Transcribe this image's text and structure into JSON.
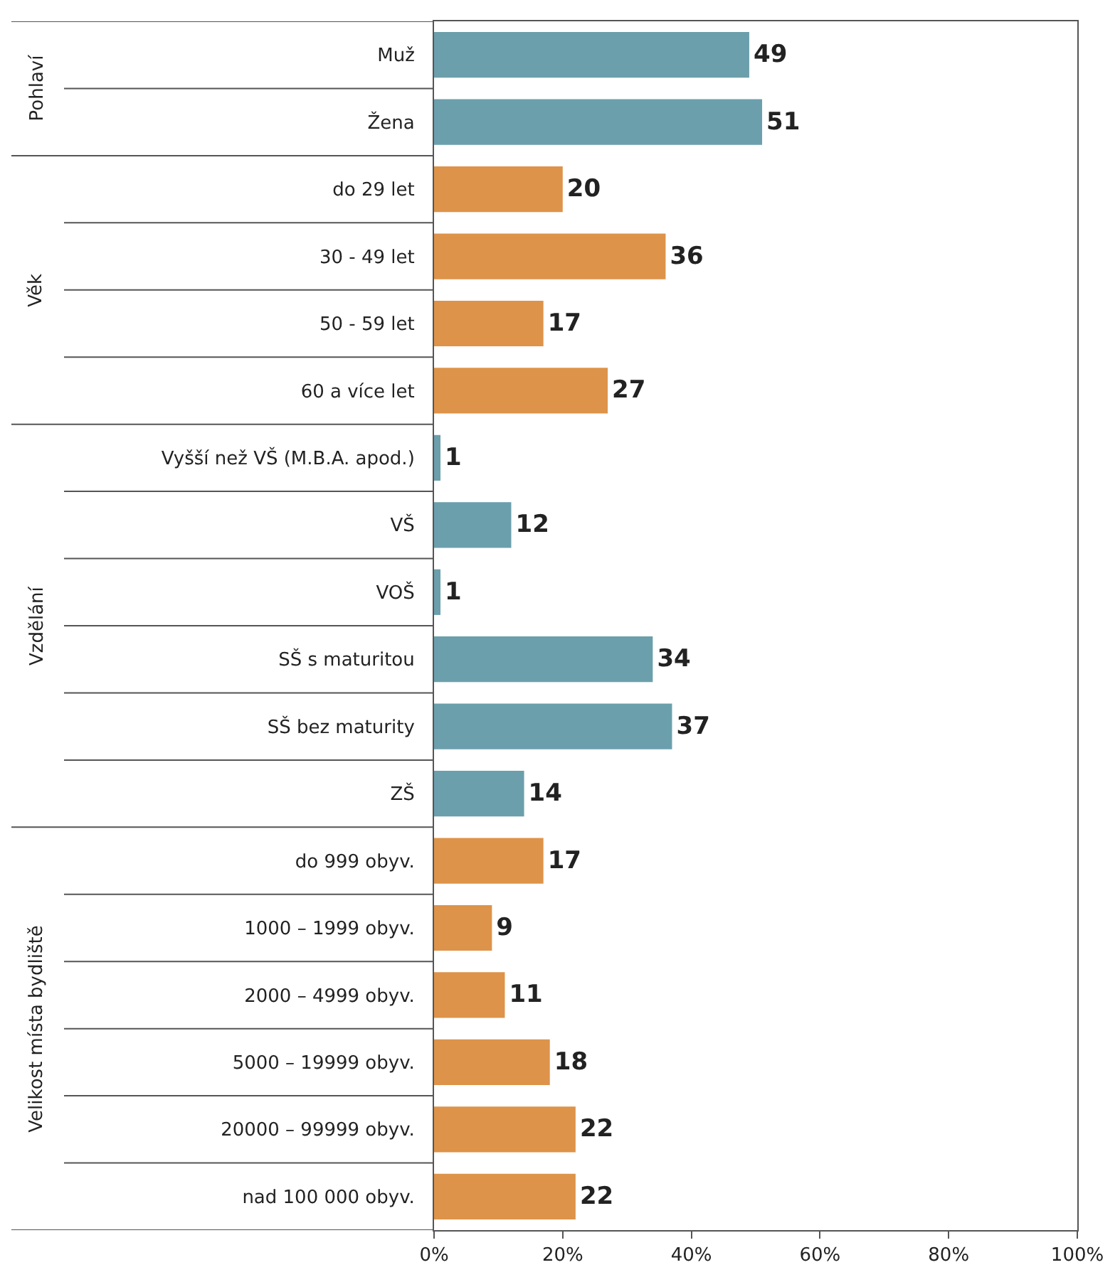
{
  "chart_data": {
    "type": "bar",
    "orientation": "horizontal",
    "categories": [
      "Muž",
      "Žena",
      "do 29 let",
      "30 - 49 let",
      "50 - 59 let",
      "60 a více let",
      "Vyšší než VŠ (M.B.A. apod.)",
      "VŠ",
      "VOŠ",
      "SŠ s maturitou",
      "SŠ bez maturity",
      "ZŠ",
      "do 999 obyv.",
      "1000 – 1999 obyv.",
      "2000 – 4999 obyv.",
      "5000 – 19999 obyv.",
      "20000 – 99999 obyv.",
      "nad 100 000 obyv."
    ],
    "values": [
      49,
      51,
      20,
      36,
      17,
      27,
      1,
      12,
      1,
      34,
      37,
      14,
      17,
      9,
      11,
      18,
      22,
      22
    ],
    "colors": [
      "#6b9fac",
      "#6b9fac",
      "#dd9349",
      "#dd9349",
      "#dd9349",
      "#dd9349",
      "#6b9fac",
      "#6b9fac",
      "#6b9fac",
      "#6b9fac",
      "#6b9fac",
      "#6b9fac",
      "#dd9349",
      "#dd9349",
      "#dd9349",
      "#dd9349",
      "#dd9349",
      "#dd9349"
    ],
    "annotations": [
      "Pohlaví",
      "Věk",
      "Vzdělání",
      "Velikost místa bydliště"
    ],
    "xlim": [
      0,
      100
    ],
    "xticks": [
      {
        "value": 0,
        "label": "0%"
      },
      {
        "value": 20,
        "label": "20%"
      },
      {
        "value": 40,
        "label": "40%"
      },
      {
        "value": 60,
        "label": "60%"
      },
      {
        "value": 80,
        "label": "80%"
      },
      {
        "value": 100,
        "label": "100%"
      }
    ],
    "data_labels": true
  }
}
